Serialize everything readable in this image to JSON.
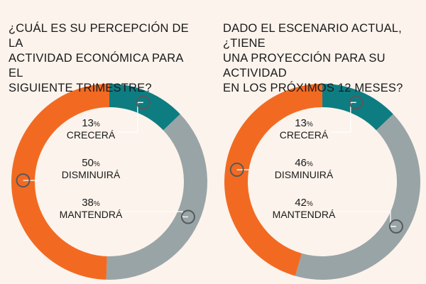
{
  "chart_data": [
    {
      "type": "pie",
      "variant": "donut",
      "title": "¿CUÁL ES SU PERCEPCIÓN DE LA ACTIVIDAD ECONÓMICA PARA EL SIGUIENTE TRIMESTRE?",
      "title_lines": [
        "¿CUÁL ES SU PERCEPCIÓN DE LA",
        "ACTIVIDAD ECONÓMICA PARA EL",
        "SIGUIENTE TRIMESTRE?"
      ],
      "slices": [
        {
          "label": "CRECERÁ",
          "value": 13,
          "value_text": "13",
          "color": "#0e7d82"
        },
        {
          "label": "MANTENDRÁ",
          "value": 38,
          "value_text": "38",
          "color": "#99a4a6"
        },
        {
          "label": "DISMINUIRÁ",
          "value": 50,
          "value_text": "50",
          "color": "#f26a22"
        }
      ],
      "unit": "%"
    },
    {
      "type": "pie",
      "variant": "donut",
      "title": "DADO EL ESCENARIO ACTUAL, ¿TIENE UNA PROYECCIÓN PARA SU ACTIVIDAD EN LOS PRÓXIMOS 12 MESES?",
      "title_lines": [
        "DADO EL ESCENARIO ACTUAL, ¿TIENE",
        "UNA PROYECCIÓN PARA SU ACTIVIDAD",
        "EN LOS PRÓXIMOS 12 MESES?"
      ],
      "slices": [
        {
          "label": "CRECERÁ",
          "value": 13,
          "value_text": "13",
          "color": "#0e7d82"
        },
        {
          "label": "MANTENDRÁ",
          "value": 42,
          "value_text": "42",
          "color": "#99a4a6"
        },
        {
          "label": "DISMINUIRÁ",
          "value": 46,
          "value_text": "46",
          "color": "#f26a22"
        }
      ],
      "unit": "%"
    }
  ]
}
